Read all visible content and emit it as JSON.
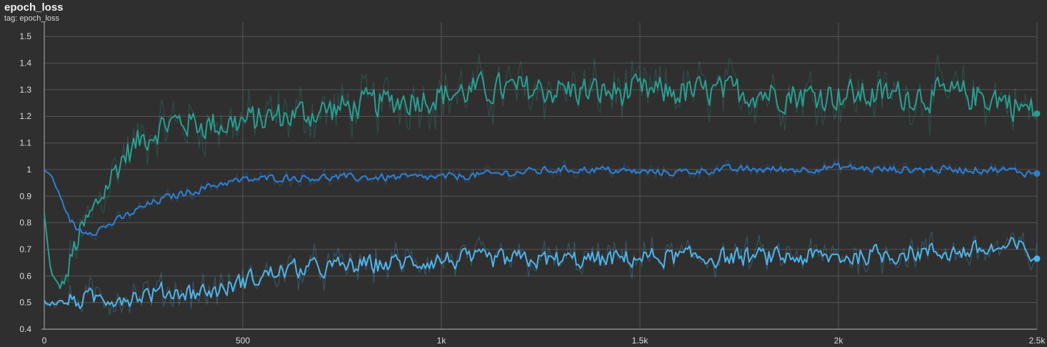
{
  "header": {
    "title": "epoch_loss",
    "tag_label": "tag: epoch_loss"
  },
  "chart_data": {
    "type": "line",
    "title": "epoch_loss",
    "xlabel": "",
    "ylabel": "",
    "xlim": [
      0,
      2500
    ],
    "ylim": [
      0.4,
      1.53
    ],
    "x_ticks": [
      0,
      500,
      1000,
      1500,
      2000,
      2500
    ],
    "x_tick_labels": [
      "0",
      "500",
      "1k",
      "1.5k",
      "2k",
      "2.5k"
    ],
    "y_ticks": [
      0.4,
      0.5,
      0.6,
      0.7,
      0.8,
      0.9,
      1.0,
      1.1,
      1.2,
      1.3,
      1.4,
      1.5
    ],
    "y_tick_labels": [
      "0.4",
      "0.5",
      "0.6",
      "0.7",
      "0.8",
      "0.9",
      "1",
      "1.1",
      "1.2",
      "1.3",
      "1.4",
      "1.5"
    ],
    "grid": true,
    "legend": "none",
    "series": [
      {
        "color": "#2a9d8f",
        "raw_color": "#2a9d8f",
        "last_value": 1.21,
        "x": [
          0,
          10,
          20,
          30,
          40,
          50,
          60,
          80,
          100,
          120,
          150,
          180,
          200,
          250,
          300,
          350,
          400,
          450,
          500,
          600,
          700,
          800,
          900,
          1000,
          1100,
          1200,
          1300,
          1400,
          1500,
          1600,
          1700,
          1800,
          1900,
          2000,
          2100,
          2200,
          2300,
          2400,
          2500
        ],
        "y": [
          0.83,
          0.69,
          0.6,
          0.57,
          0.56,
          0.58,
          0.62,
          0.72,
          0.78,
          0.83,
          0.92,
          1.0,
          1.05,
          1.12,
          1.17,
          1.18,
          1.17,
          1.17,
          1.18,
          1.2,
          1.22,
          1.24,
          1.26,
          1.28,
          1.3,
          1.3,
          1.3,
          1.29,
          1.29,
          1.29,
          1.29,
          1.29,
          1.28,
          1.28,
          1.28,
          1.28,
          1.28,
          1.27,
          1.21
        ],
        "noise": 0.08
      },
      {
        "color": "#2f7fd1",
        "raw_color": "#2f7fd1",
        "last_value": 0.985,
        "x": [
          0,
          20,
          40,
          60,
          80,
          100,
          130,
          160,
          200,
          250,
          300,
          350,
          400,
          450,
          500,
          600,
          700,
          800,
          900,
          1000,
          1100,
          1200,
          1300,
          1400,
          1500,
          1600,
          1700,
          1800,
          1900,
          2000,
          2100,
          2200,
          2300,
          2400,
          2500
        ],
        "y": [
          1.0,
          0.97,
          0.9,
          0.82,
          0.78,
          0.77,
          0.77,
          0.79,
          0.82,
          0.86,
          0.89,
          0.91,
          0.93,
          0.95,
          0.96,
          0.97,
          0.97,
          0.97,
          0.97,
          0.97,
          0.98,
          0.99,
          1.0,
          1.0,
          0.99,
          0.99,
          1.0,
          1.0,
          1.0,
          1.01,
          1.0,
          1.0,
          1.0,
          1.0,
          0.985
        ],
        "noise": 0.02
      },
      {
        "color": "#4fb3e8",
        "raw_color": "#4fb3e8",
        "last_value": 0.665,
        "x": [
          0,
          50,
          100,
          150,
          200,
          250,
          300,
          350,
          400,
          450,
          500,
          550,
          600,
          700,
          800,
          900,
          1000,
          1100,
          1200,
          1300,
          1400,
          1500,
          1600,
          1700,
          1800,
          1900,
          2000,
          2100,
          2200,
          2300,
          2400,
          2450,
          2500
        ],
        "y": [
          0.5,
          0.5,
          0.51,
          0.52,
          0.52,
          0.53,
          0.54,
          0.54,
          0.54,
          0.55,
          0.58,
          0.6,
          0.62,
          0.63,
          0.64,
          0.65,
          0.66,
          0.66,
          0.66,
          0.66,
          0.66,
          0.67,
          0.67,
          0.67,
          0.67,
          0.67,
          0.67,
          0.68,
          0.69,
          0.69,
          0.7,
          0.71,
          0.665
        ],
        "noise": 0.05
      }
    ]
  }
}
